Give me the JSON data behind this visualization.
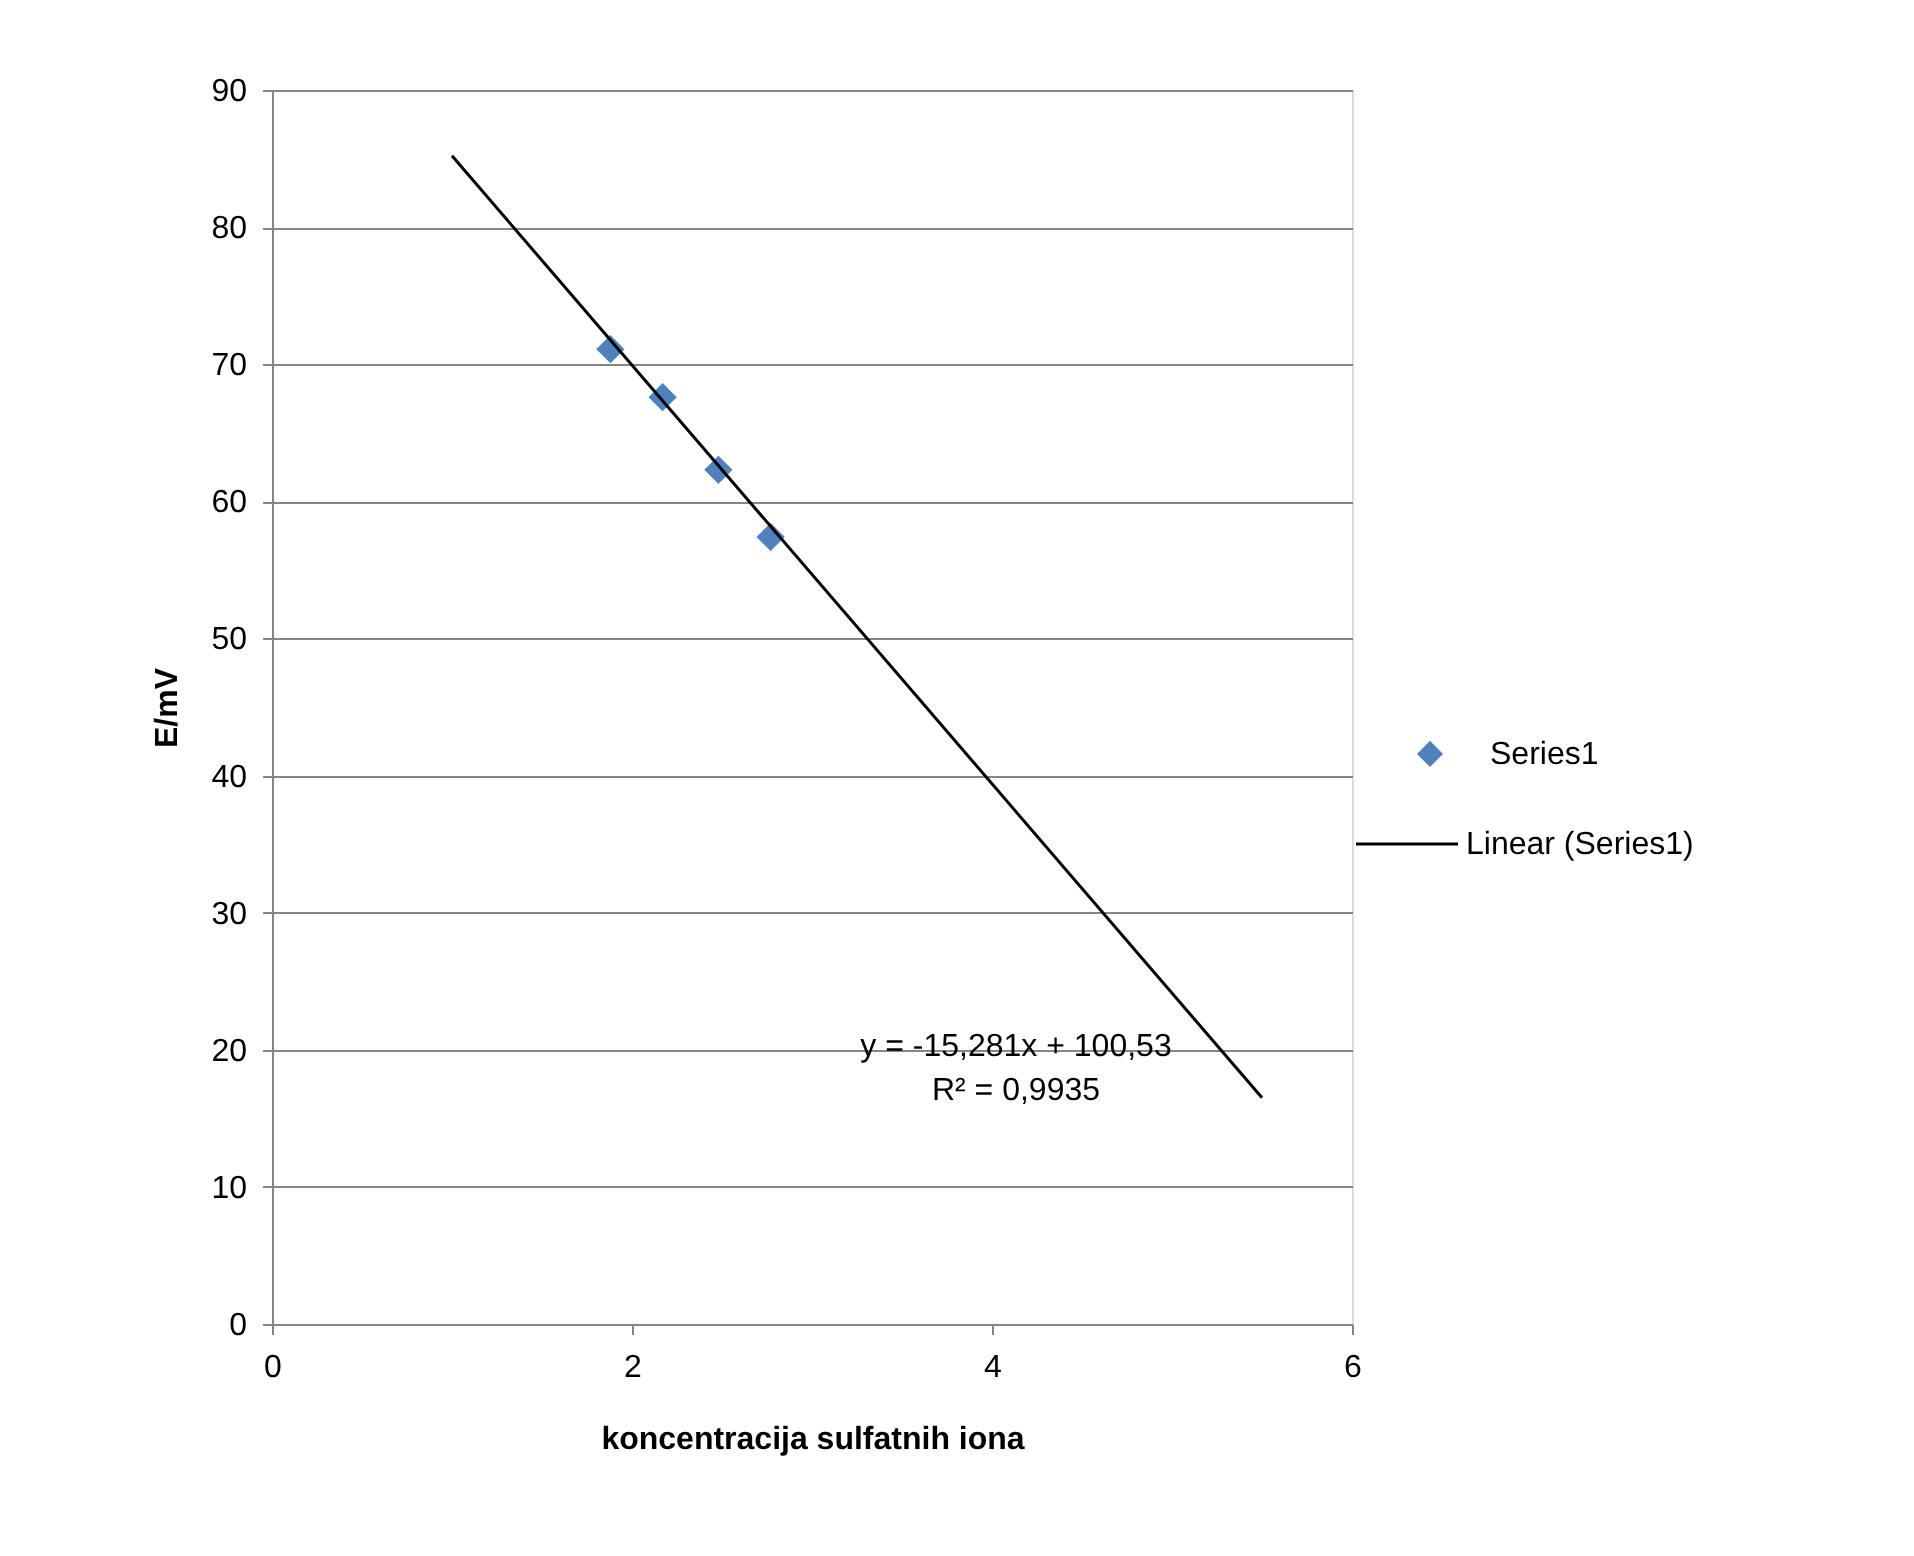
{
  "chart_data": {
    "type": "scatter",
    "xlabel": "koncentracija sulfatnih iona",
    "ylabel": "E/mV",
    "xlim": [
      0,
      6
    ],
    "xticks": [
      0,
      2,
      4,
      6
    ],
    "ylim": [
      0,
      90
    ],
    "yticks": [
      0,
      10,
      20,
      30,
      40,
      50,
      60,
      70,
      80,
      90
    ],
    "grid": "y",
    "legend": "right",
    "series": [
      {
        "name": "Series1",
        "color": "#4f81bd",
        "marker": "diamond",
        "x": [
          1.88,
          2.17,
          2.48,
          2.77
        ],
        "values": [
          71.1,
          67.6,
          62.3,
          57.4
        ]
      },
      {
        "name": "Linear (Series1)",
        "type": "line",
        "color": "#000000",
        "x": [
          1,
          5.5
        ],
        "values": [
          85.2,
          16.5
        ]
      }
    ],
    "annotations": [
      "y = -15,281x + 100,53",
      "R² = 0,9935"
    ]
  }
}
